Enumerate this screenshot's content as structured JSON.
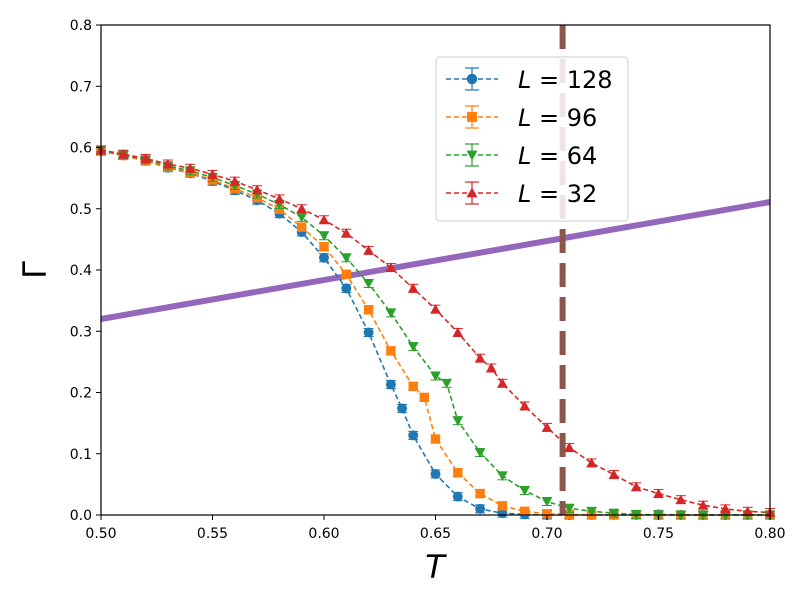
{
  "chart_data": {
    "type": "line",
    "xlabel": "T",
    "ylabel": "Γ",
    "xlim": [
      0.5,
      0.8
    ],
    "ylim": [
      0.0,
      0.8
    ],
    "x_ticks": [
      0.5,
      0.55,
      0.6,
      0.65,
      0.7,
      0.75,
      0.8
    ],
    "x_tick_labels": [
      "0.50",
      "0.55",
      "0.60",
      "0.65",
      "0.70",
      "0.75",
      "0.80"
    ],
    "y_ticks": [
      0.0,
      0.1,
      0.2,
      0.3,
      0.4,
      0.5,
      0.6,
      0.7,
      0.8
    ],
    "y_tick_labels": [
      "0.0",
      "0.1",
      "0.2",
      "0.3",
      "0.4",
      "0.5",
      "0.6",
      "0.7",
      "0.8"
    ],
    "grid": false,
    "legend_position": "upper-center-right",
    "series": [
      {
        "name": "L = 128",
        "label_var": "L",
        "label_value": "128",
        "color": "#1f77b4",
        "marker": "circle",
        "linestyle": "dashed",
        "x": [
          0.5,
          0.51,
          0.52,
          0.53,
          0.54,
          0.55,
          0.56,
          0.57,
          0.58,
          0.59,
          0.6,
          0.61,
          0.62,
          0.63,
          0.635,
          0.64,
          0.65,
          0.66,
          0.67,
          0.68,
          0.69,
          0.7,
          0.71,
          0.72,
          0.73,
          0.74,
          0.75,
          0.76,
          0.77,
          0.78,
          0.79,
          0.8
        ],
        "y": [
          0.594,
          0.587,
          0.578,
          0.567,
          0.558,
          0.545,
          0.53,
          0.514,
          0.492,
          0.462,
          0.42,
          0.37,
          0.298,
          0.213,
          0.174,
          0.13,
          0.067,
          0.03,
          0.01,
          0.003,
          0.001,
          0.0,
          0.0,
          0.0,
          0.0,
          0.0,
          0.001,
          0.0,
          0.0,
          0.0,
          0.0,
          0.0
        ]
      },
      {
        "name": "L = 96",
        "label_var": "L",
        "label_value": "96",
        "color": "#ff7f0e",
        "marker": "square",
        "linestyle": "dashed",
        "x": [
          0.5,
          0.51,
          0.52,
          0.53,
          0.54,
          0.55,
          0.56,
          0.57,
          0.58,
          0.59,
          0.6,
          0.61,
          0.62,
          0.63,
          0.64,
          0.645,
          0.65,
          0.66,
          0.67,
          0.68,
          0.69,
          0.7,
          0.71,
          0.72,
          0.73,
          0.74,
          0.75,
          0.76,
          0.77,
          0.78,
          0.79,
          0.8
        ],
        "y": [
          0.594,
          0.587,
          0.578,
          0.568,
          0.559,
          0.547,
          0.533,
          0.518,
          0.499,
          0.47,
          0.438,
          0.393,
          0.335,
          0.268,
          0.21,
          0.192,
          0.124,
          0.069,
          0.035,
          0.015,
          0.006,
          0.002,
          0.001,
          0.0,
          0.0,
          0.0,
          0.0,
          0.0,
          0.0,
          0.0,
          0.0,
          0.0
        ]
      },
      {
        "name": "L = 64",
        "label_var": "L",
        "label_value": "64",
        "color": "#2ca02c",
        "marker": "triangle-down",
        "linestyle": "dashed",
        "x": [
          0.5,
          0.51,
          0.52,
          0.53,
          0.54,
          0.55,
          0.56,
          0.57,
          0.58,
          0.59,
          0.6,
          0.61,
          0.62,
          0.63,
          0.64,
          0.65,
          0.655,
          0.66,
          0.67,
          0.68,
          0.69,
          0.7,
          0.71,
          0.72,
          0.73,
          0.74,
          0.75,
          0.76,
          0.77,
          0.78,
          0.79,
          0.8
        ],
        "y": [
          0.596,
          0.588,
          0.58,
          0.57,
          0.562,
          0.551,
          0.538,
          0.524,
          0.507,
          0.486,
          0.456,
          0.42,
          0.378,
          0.33,
          0.275,
          0.227,
          0.215,
          0.154,
          0.102,
          0.064,
          0.04,
          0.022,
          0.011,
          0.006,
          0.003,
          0.001,
          0.0,
          0.0,
          0.0,
          0.0,
          0.0,
          0.0
        ]
      },
      {
        "name": "L = 32",
        "label_var": "L",
        "label_value": "32",
        "color": "#d62728",
        "marker": "triangle-up",
        "linestyle": "dashed",
        "x": [
          0.5,
          0.51,
          0.52,
          0.53,
          0.54,
          0.55,
          0.56,
          0.57,
          0.58,
          0.59,
          0.6,
          0.61,
          0.62,
          0.63,
          0.64,
          0.65,
          0.66,
          0.67,
          0.675,
          0.68,
          0.69,
          0.7,
          0.71,
          0.72,
          0.73,
          0.74,
          0.75,
          0.76,
          0.77,
          0.78,
          0.79,
          0.8
        ],
        "y": [
          0.596,
          0.589,
          0.582,
          0.573,
          0.566,
          0.556,
          0.545,
          0.531,
          0.516,
          0.5,
          0.482,
          0.46,
          0.432,
          0.404,
          0.37,
          0.336,
          0.298,
          0.256,
          0.24,
          0.215,
          0.178,
          0.143,
          0.11,
          0.085,
          0.066,
          0.046,
          0.035,
          0.025,
          0.016,
          0.01,
          0.006,
          0.004
        ]
      }
    ],
    "reference_lines": [
      {
        "name": "purple diagonal",
        "color": "#9467bd",
        "style": "solid",
        "x": [
          0.5,
          0.8
        ],
        "y": [
          0.32,
          0.511
        ]
      },
      {
        "name": "vertical dashed",
        "color": "#8c564b",
        "style": "dashed",
        "x_value": 0.707
      }
    ]
  }
}
